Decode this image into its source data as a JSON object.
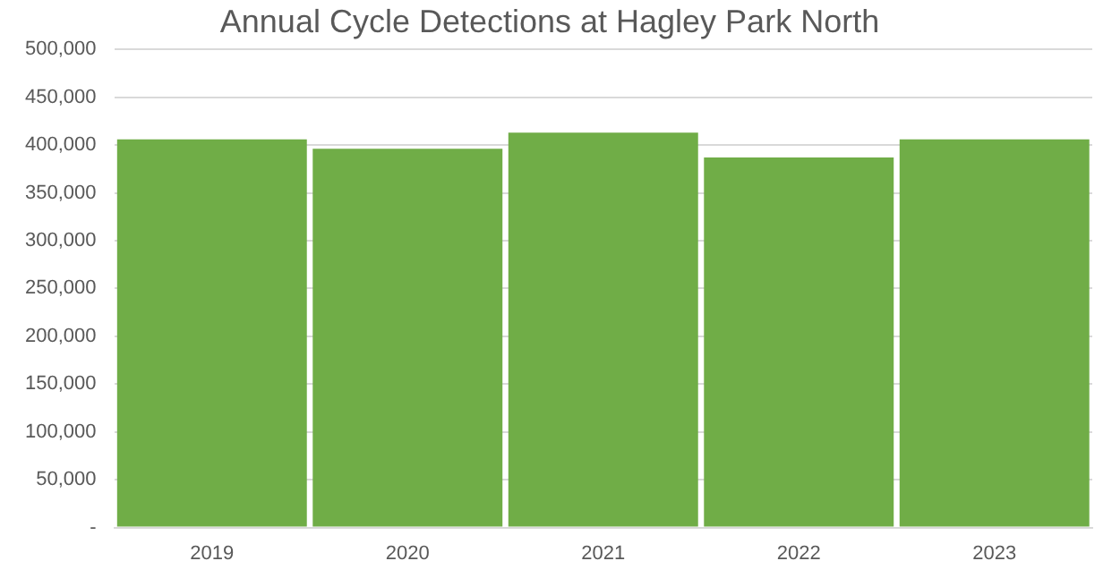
{
  "chart_data": {
    "type": "bar",
    "title": "Annual Cycle Detections at Hagley Park North",
    "categories": [
      "2019",
      "2020",
      "2021",
      "2022",
      "2023"
    ],
    "values": [
      406000,
      396000,
      413000,
      387000,
      406000
    ],
    "color": "#70ad47",
    "ylim": [
      0,
      500000
    ],
    "yticks": [
      {
        "value": 0,
        "label": "-"
      },
      {
        "value": 50000,
        "label": "50,000"
      },
      {
        "value": 100000,
        "label": "100,000"
      },
      {
        "value": 150000,
        "label": "150,000"
      },
      {
        "value": 200000,
        "label": "200,000"
      },
      {
        "value": 250000,
        "label": "250,000"
      },
      {
        "value": 300000,
        "label": "300,000"
      },
      {
        "value": 350000,
        "label": "350,000"
      },
      {
        "value": 400000,
        "label": "400,000"
      },
      {
        "value": 450000,
        "label": "450,000"
      },
      {
        "value": 500000,
        "label": "500,000"
      }
    ],
    "grid": "y",
    "legend": false
  }
}
